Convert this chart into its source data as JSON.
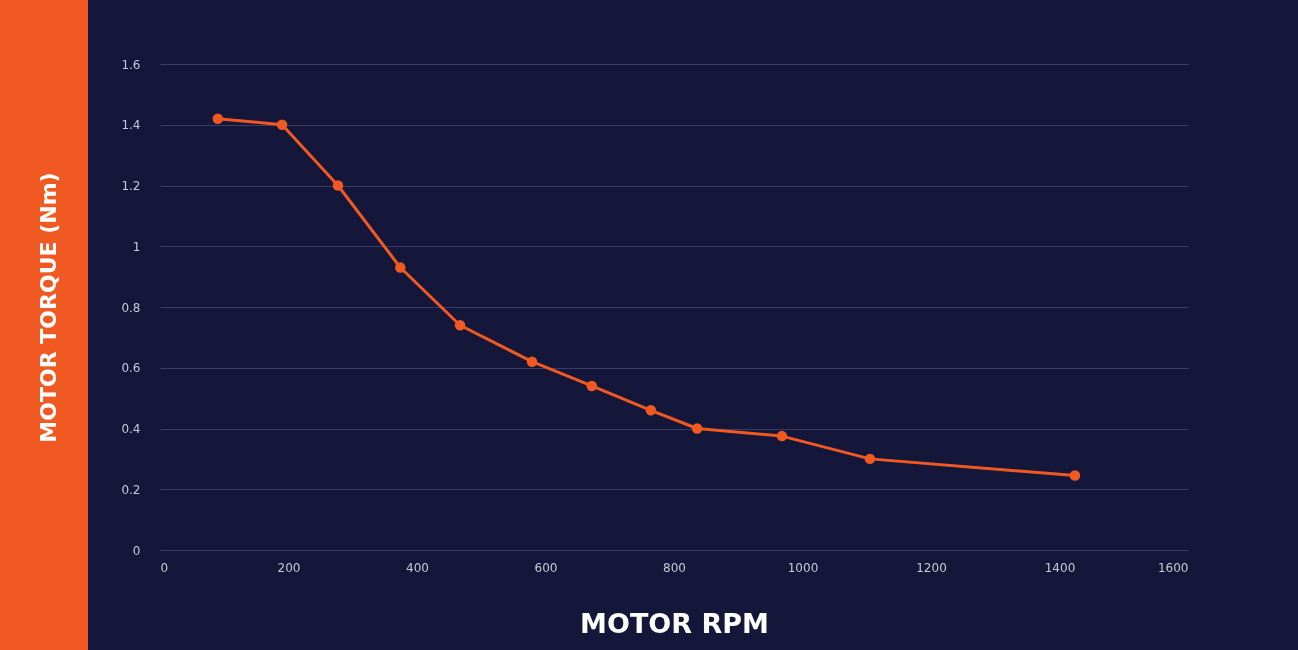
{
  "chart_data": {
    "type": "line",
    "xlabel": "MOTOR RPM",
    "ylabel": "MOTOR TORQUE (Nm)",
    "x": [
      90,
      190,
      277,
      374,
      467,
      579,
      672,
      764,
      836,
      968,
      1105,
      1424
    ],
    "series": [
      {
        "color": "#f05a22",
        "values": [
          1.42,
          1.4,
          1.2,
          0.93,
          0.74,
          0.62,
          0.54,
          0.46,
          0.4,
          0.375,
          0.3,
          0.245
        ]
      }
    ],
    "xlim": [
      0,
      1600
    ],
    "xticks": [
      0,
      200,
      400,
      600,
      800,
      1000,
      1200,
      1400,
      1600
    ],
    "ylim": [
      0,
      1.6
    ],
    "yticks": [
      0,
      0.2,
      0.4,
      0.6,
      0.8,
      1,
      1.2,
      1.4,
      1.6
    ],
    "grid": "y",
    "marker": "circle",
    "line_style": "solid"
  }
}
